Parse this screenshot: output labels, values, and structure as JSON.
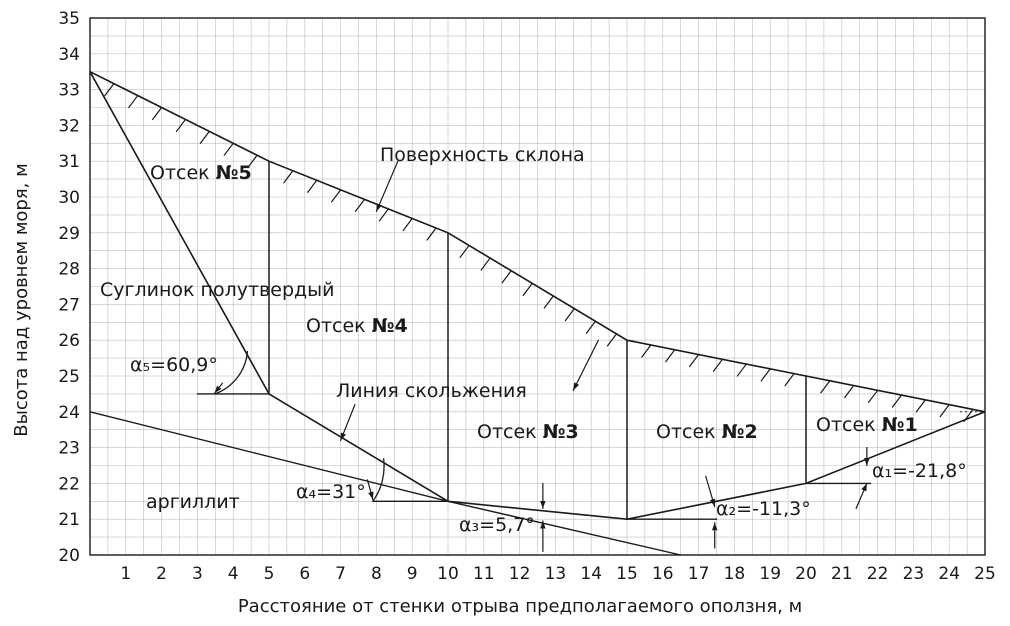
{
  "figure": {
    "xlabel": "Расстояние от стенки отрыва предполагаемого оползня, м",
    "ylabel": "Высота над уровнем моря, м",
    "xlim": [
      0,
      25
    ],
    "ylim": [
      20,
      35
    ],
    "x_ticks": [
      "1",
      "2",
      "3",
      "4",
      "5",
      "6",
      "7",
      "8",
      "9",
      "10",
      "11",
      "12",
      "13",
      "14",
      "15",
      "16",
      "17",
      "18",
      "19",
      "20",
      "21",
      "22",
      "23",
      "24",
      "25"
    ],
    "y_ticks": [
      "20",
      "21",
      "22",
      "23",
      "24",
      "25",
      "26",
      "27",
      "28",
      "29",
      "30",
      "31",
      "32",
      "33",
      "34",
      "35"
    ],
    "grid": true
  },
  "geometry": {
    "slope_surface": [
      [
        0,
        33.5
      ],
      [
        5,
        31
      ],
      [
        10,
        29
      ],
      [
        15,
        26
      ],
      [
        20,
        25
      ],
      [
        25,
        24
      ]
    ],
    "slip_line": [
      [
        0,
        33.5
      ],
      [
        5,
        24.5
      ],
      [
        10,
        21.5
      ],
      [
        15,
        21
      ],
      [
        20,
        22
      ],
      [
        25,
        24
      ]
    ],
    "compartment_boundaries": [
      {
        "x": 5,
        "y_bottom": 24.5,
        "y_top": 31
      },
      {
        "x": 10,
        "y_bottom": 21.5,
        "y_top": 29
      },
      {
        "x": 15,
        "y_bottom": 21,
        "y_top": 26
      },
      {
        "x": 20,
        "y_bottom": 22,
        "y_top": 25
      }
    ],
    "clay_boundary": [
      [
        0,
        24
      ],
      [
        10,
        21.5
      ],
      [
        16.5,
        20
      ]
    ]
  },
  "labels": {
    "slope_surface": "Поверхность склона",
    "slip_line": "Линия скольжения",
    "soil_loam": "Суглинок полутвердый",
    "soil_argillite": "аргиллит",
    "compartments": [
      {
        "prefix": "Отсек ",
        "num": "№1"
      },
      {
        "prefix": "Отсек ",
        "num": "№2"
      },
      {
        "prefix": "Отсек ",
        "num": "№3"
      },
      {
        "prefix": "Отсек ",
        "num": "№4"
      },
      {
        "prefix": "Отсек ",
        "num": "№5"
      }
    ],
    "angles": [
      {
        "alpha": "α₁",
        "value": "=-21,8°"
      },
      {
        "alpha": "α₂",
        "value": "=-11,3°"
      },
      {
        "alpha": "α₃",
        "value": "=5,7°"
      },
      {
        "alpha": "α₄",
        "value": "=31°"
      },
      {
        "alpha": "α₅",
        "value": "=60,9°"
      }
    ]
  }
}
